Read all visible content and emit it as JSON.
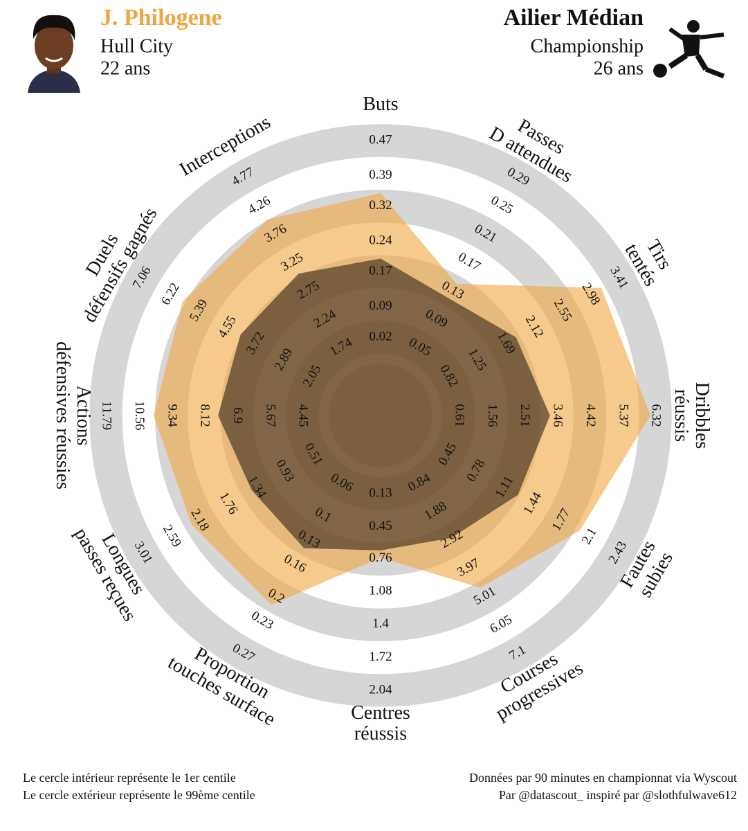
{
  "header": {
    "club": "Hull City",
    "age": "22 ans",
    "league": "Championship",
    "league_age": "26 ans"
  },
  "footer": {
    "left": [
      "Le cercle intérieur représente le 1er centile",
      "Le cercle extérieur représente le 99ème centile"
    ],
    "right": [
      "Données par 90 minutes en championnat via Wyscout",
      "Par @datascout_ inspiré par @slothfulwave612"
    ]
  },
  "chart_data": {
    "type": "radar",
    "categories": [
      [
        "Buts"
      ],
      [
        "Passes",
        "D attendues"
      ],
      [
        "Tirs",
        "tentés"
      ],
      [
        "Dribbles",
        "réussis"
      ],
      [
        "Fautes",
        "subies"
      ],
      [
        "Courses",
        "progressives"
      ],
      [
        "Centres",
        "réussis"
      ],
      [
        "Proportion",
        "touches surface"
      ],
      [
        "Longues",
        "passes reçues"
      ],
      [
        "Actions",
        "défensives réussies"
      ],
      [
        "Duels",
        "défensifs gagnés"
      ],
      [
        "Interceptions"
      ]
    ],
    "rlims": [
      [
        0.02,
        0.47
      ],
      [
        0.05,
        0.29
      ],
      [
        0.82,
        3.41
      ],
      [
        0.61,
        6.32
      ],
      [
        0.45,
        2.43
      ],
      [
        0.84,
        7.1
      ],
      [
        0.13,
        2.04
      ],
      [
        0.06,
        0.27
      ],
      [
        0.51,
        3.01
      ],
      [
        4.45,
        11.79
      ],
      [
        2.05,
        7.06
      ],
      [
        1.74,
        4.77
      ]
    ],
    "rticks": [
      [
        0.02,
        0.09,
        0.17,
        0.24,
        0.32,
        0.39,
        0.47
      ],
      [
        0.05,
        0.09,
        0.13,
        0.17,
        0.21,
        0.25,
        0.29
      ],
      [
        0.82,
        1.25,
        1.69,
        2.12,
        2.55,
        2.98,
        3.41
      ],
      [
        0.61,
        1.56,
        2.51,
        3.46,
        4.42,
        5.37,
        6.32
      ],
      [
        0.45,
        0.78,
        1.11,
        1.44,
        1.77,
        2.1,
        2.43
      ],
      [
        0.84,
        1.88,
        2.92,
        3.97,
        5.01,
        6.05,
        7.1
      ],
      [
        0.13,
        0.45,
        0.76,
        1.08,
        1.4,
        1.72,
        2.04
      ],
      [
        0.06,
        0.1,
        0.13,
        0.16,
        0.2,
        0.23,
        0.27
      ],
      [
        0.51,
        0.93,
        1.34,
        1.76,
        2.18,
        2.59,
        3.01
      ],
      [
        4.45,
        5.67,
        6.9,
        8.12,
        9.34,
        10.56,
        11.79
      ],
      [
        2.05,
        2.89,
        3.72,
        4.55,
        5.39,
        6.22,
        7.06
      ],
      [
        1.74,
        2.24,
        2.75,
        3.25,
        3.76,
        4.26,
        4.77
      ]
    ],
    "ring_color": "#d6d6d6",
    "series": [
      {
        "name": "J. Philogene",
        "color": "#f0a640",
        "values": [
          0.35,
          0.14,
          3.15,
          6.18,
          1.98,
          4.68,
          0.75,
          0.21,
          2.29,
          10.01,
          5.88,
          4.02
        ]
      },
      {
        "name": "Ailier Médian",
        "color": "#40301f",
        "values": [
          0.2,
          0.12,
          1.85,
          3.26,
          1.26,
          2.85,
          0.68,
          0.14,
          1.41,
          7.6,
          4.18,
          3.06
        ]
      }
    ]
  }
}
